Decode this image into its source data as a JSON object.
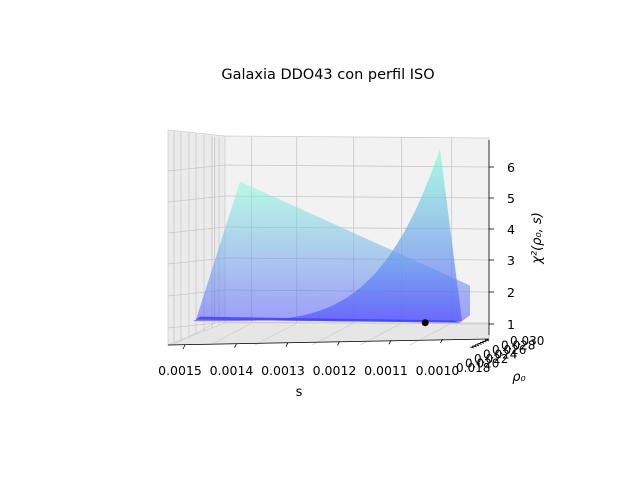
{
  "chart_data": {
    "type": "surface3d",
    "title": "Galaxia DDO43 con perfil ISO",
    "xlabel": "s",
    "ylabel": "ρ₀",
    "zlabel": "χ²(ρ₀, s)",
    "x_ticks": [
      "0.0015",
      "0.0014",
      "0.0013",
      "0.0012",
      "0.0011",
      "0.0010"
    ],
    "x_range": [
      0.00095,
      0.00155
    ],
    "y_ticks": [
      "0.018",
      "0.020",
      "0.022",
      "0.024",
      "0.026",
      "0.028",
      "0.030"
    ],
    "z_ticks": [
      "1",
      "2",
      "3",
      "4",
      "5",
      "6"
    ],
    "z_range": [
      0.5,
      6.9
    ],
    "grid": true,
    "colormap": [
      "#4f4fff",
      "#7fffd4"
    ],
    "surface_samples": {
      "s": [
        0.0015,
        0.0014,
        0.0013,
        0.0012,
        0.0011,
        0.001
      ],
      "chi2_back_edge": [
        0.8,
        1.0,
        1.35,
        2.0,
        3.2,
        6.6
      ],
      "chi2_front_edge": [
        0.85,
        5.5,
        4.6,
        3.7,
        2.9,
        2.0
      ]
    },
    "minimum_point": {
      "s": 0.00103,
      "chi2": 0.88
    }
  }
}
